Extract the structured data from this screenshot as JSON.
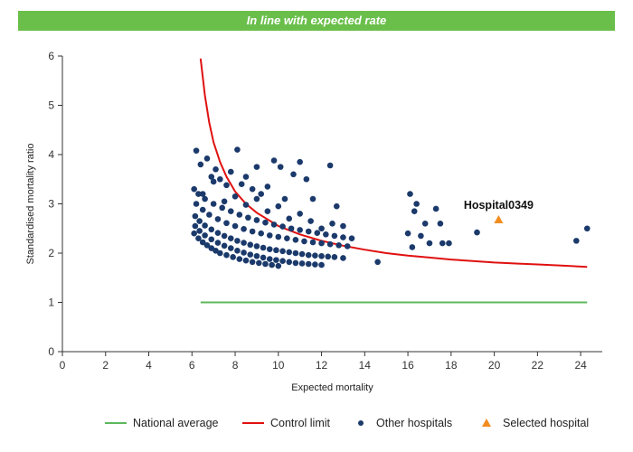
{
  "header": {
    "banner_text": "In line with expected rate"
  },
  "colors": {
    "banner": "#6abf4b",
    "national": "#5cb85c",
    "control": "#e01010",
    "other": "#1b3a6b",
    "selected": "#f28c1e"
  },
  "chart_data": {
    "type": "scatter",
    "title": "In line with expected rate",
    "xlabel": "Expected mortality",
    "ylabel": "Standardised mortality ratio",
    "xlim": [
      0,
      25
    ],
    "ylim": [
      0,
      6
    ],
    "x_ticks": [
      0,
      2,
      4,
      6,
      8,
      10,
      12,
      14,
      16,
      18,
      20,
      22,
      24
    ],
    "y_ticks": [
      0,
      1,
      2,
      3,
      4,
      5,
      6
    ],
    "grid": false,
    "legend_position": "bottom",
    "legend": [
      {
        "label": "National average",
        "kind": "line",
        "color_key": "national"
      },
      {
        "label": "Control limit",
        "kind": "line",
        "color_key": "control"
      },
      {
        "label": "Other hospitals",
        "kind": "dot",
        "color_key": "other"
      },
      {
        "label": "Selected hospital",
        "kind": "triangle",
        "color_key": "selected"
      }
    ],
    "national_average": {
      "x": [
        6.4,
        24.3
      ],
      "y": [
        1.0,
        1.0
      ]
    },
    "control_limit": {
      "x": [
        6.4,
        6.6,
        6.8,
        7.0,
        7.3,
        7.6,
        8.0,
        8.5,
        9.0,
        10.0,
        11.0,
        12.0,
        13.0,
        14.0,
        15.0,
        16.0,
        17.0,
        18.0,
        19.0,
        20.0,
        21.0,
        22.0,
        23.0,
        24.3
      ],
      "y": [
        5.95,
        5.2,
        4.65,
        4.25,
        3.85,
        3.55,
        3.25,
        3.0,
        2.82,
        2.55,
        2.38,
        2.25,
        2.15,
        2.07,
        2.0,
        1.95,
        1.91,
        1.87,
        1.84,
        1.81,
        1.79,
        1.77,
        1.75,
        1.72
      ]
    },
    "other_hospitals": {
      "x": [
        6.1,
        6.3,
        6.5,
        6.7,
        6.9,
        7.1,
        7.3,
        7.6,
        7.9,
        8.2,
        8.5,
        8.8,
        9.1,
        9.4,
        9.7,
        10.0,
        6.15,
        6.35,
        6.6,
        6.9,
        7.2,
        7.5,
        7.8,
        8.1,
        8.4,
        8.7,
        9.0,
        9.3,
        9.6,
        9.9,
        10.2,
        10.5,
        10.8,
        11.1,
        11.4,
        11.7,
        12.0,
        6.15,
        6.35,
        6.6,
        6.9,
        7.2,
        7.5,
        7.8,
        8.1,
        8.4,
        8.7,
        9.0,
        9.3,
        9.6,
        9.9,
        10.2,
        10.5,
        10.8,
        11.1,
        11.4,
        11.7,
        12.0,
        12.3,
        12.6,
        13.0,
        6.2,
        6.5,
        6.8,
        7.2,
        7.6,
        8.0,
        8.4,
        8.8,
        9.2,
        9.6,
        10.0,
        10.4,
        10.8,
        11.2,
        11.6,
        12.0,
        12.4,
        12.8,
        13.2,
        6.1,
        6.3,
        6.6,
        7.0,
        7.4,
        7.8,
        8.2,
        8.6,
        9.0,
        9.4,
        9.8,
        10.2,
        10.6,
        11.0,
        11.4,
        11.8,
        12.2,
        12.6,
        13.0,
        13.4,
        6.2,
        6.4,
        6.7,
        6.9,
        7.1,
        7.3,
        7.6,
        7.8,
        8.1,
        8.3,
        8.5,
        8.8,
        9.0,
        9.2,
        9.5,
        9.8,
        10.1,
        10.3,
        10.7,
        11.0,
        11.3,
        11.6,
        12.4,
        12.7,
        6.5,
        7.0,
        7.5,
        8.0,
        8.5,
        9.0,
        9.5,
        10.0,
        10.5,
        11.0,
        11.5,
        12.0,
        12.5,
        13.0,
        14.6,
        16.0,
        16.1,
        16.2,
        16.3,
        16.4,
        16.6,
        16.8,
        17.0,
        17.3,
        17.5,
        17.6,
        17.9,
        19.2,
        23.8,
        24.3
      ],
      "y": [
        2.4,
        2.3,
        2.22,
        2.16,
        2.1,
        2.05,
        2.0,
        1.96,
        1.92,
        1.88,
        1.85,
        1.82,
        1.8,
        1.78,
        1.76,
        1.74,
        2.55,
        2.45,
        2.36,
        2.28,
        2.21,
        2.15,
        2.1,
        2.05,
        2.01,
        1.97,
        1.94,
        1.91,
        1.88,
        1.86,
        1.84,
        1.82,
        1.8,
        1.79,
        1.78,
        1.77,
        1.76,
        2.75,
        2.65,
        2.56,
        2.48,
        2.41,
        2.35,
        2.3,
        2.25,
        2.21,
        2.17,
        2.14,
        2.11,
        2.08,
        2.06,
        2.04,
        2.02,
        2.0,
        1.98,
        1.96,
        1.95,
        1.94,
        1.93,
        1.92,
        1.9,
        3.0,
        2.88,
        2.78,
        2.69,
        2.61,
        2.55,
        2.49,
        2.44,
        2.4,
        2.36,
        2.33,
        2.3,
        2.27,
        2.24,
        2.22,
        2.2,
        2.18,
        2.16,
        2.14,
        3.3,
        3.2,
        3.1,
        3.0,
        2.92,
        2.85,
        2.78,
        2.72,
        2.67,
        2.62,
        2.58,
        2.54,
        2.5,
        2.47,
        2.44,
        2.41,
        2.38,
        2.35,
        2.32,
        2.3,
        4.08,
        3.8,
        3.92,
        3.55,
        3.7,
        3.5,
        3.38,
        3.65,
        4.1,
        3.4,
        3.55,
        3.3,
        3.75,
        3.2,
        3.35,
        3.88,
        3.75,
        3.1,
        3.6,
        3.85,
        3.5,
        3.1,
        3.78,
        2.95,
        3.2,
        3.45,
        3.05,
        3.15,
        2.98,
        3.1,
        2.85,
        2.95,
        2.7,
        2.8,
        2.65,
        2.5,
        2.6,
        2.55,
        1.82,
        2.4,
        3.2,
        2.12,
        2.85,
        3.0,
        2.35,
        2.6,
        2.2,
        2.9,
        2.6,
        2.2,
        2.2,
        2.42,
        2.25,
        2.5
      ]
    },
    "selected_hospital": {
      "name": "Hospital0349",
      "x": 20.2,
      "y": 2.68
    }
  }
}
